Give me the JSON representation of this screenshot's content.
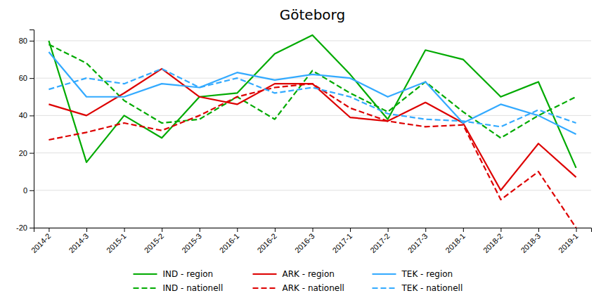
{
  "chart_data": {
    "type": "line",
    "title": "Göteborg",
    "categories": [
      "2014-2",
      "2014-3",
      "2015-1",
      "2015-2",
      "2015-3",
      "2016-1",
      "2016-2",
      "2016-3",
      "2017-1",
      "2017-2",
      "2017-3",
      "2018-1",
      "2018-2",
      "2018-3",
      "2019-1"
    ],
    "series": [
      {
        "name": "IND - region",
        "color": "#00AA00",
        "line_style": "solid",
        "values": [
          80,
          15,
          40,
          28,
          50,
          52,
          73,
          83,
          62,
          38,
          75,
          70,
          50,
          58,
          12
        ]
      },
      {
        "name": "IND - nationell",
        "color": "#00AA00",
        "line_style": "dashed",
        "values": [
          78,
          68,
          48,
          36,
          38,
          50,
          38,
          64,
          52,
          42,
          58,
          42,
          28,
          40,
          50
        ]
      },
      {
        "name": "ARK - region",
        "color": "#DD0000",
        "line_style": "solid",
        "values": [
          46,
          40,
          52,
          65,
          50,
          46,
          57,
          57,
          39,
          37,
          47,
          36,
          0,
          25,
          7
        ]
      },
      {
        "name": "ARK - nationell",
        "color": "#DD0000",
        "line_style": "dashed",
        "values": [
          27,
          31,
          36,
          32,
          40,
          50,
          55,
          57,
          44,
          37,
          34,
          35,
          -5,
          10,
          -20
        ]
      },
      {
        "name": "TEK - region",
        "color": "#33AAFF",
        "line_style": "solid",
        "values": [
          74,
          50,
          50,
          57,
          55,
          63,
          59,
          62,
          60,
          50,
          58,
          36,
          46,
          40,
          30
        ]
      },
      {
        "name": "TEK - nationell",
        "color": "#33AAFF",
        "line_style": "dashed",
        "values": [
          54,
          60,
          57,
          65,
          55,
          60,
          52,
          55,
          50,
          41,
          38,
          37,
          34,
          43,
          36
        ]
      }
    ],
    "ylim": [
      -20,
      86
    ],
    "yticks": [
      -20,
      0,
      20,
      40,
      60,
      80
    ],
    "grid": true,
    "legend": "bottom"
  }
}
